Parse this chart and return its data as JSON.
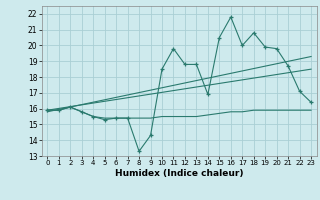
{
  "x": [
    0,
    1,
    2,
    3,
    4,
    5,
    6,
    7,
    8,
    9,
    10,
    11,
    12,
    13,
    14,
    15,
    16,
    17,
    18,
    19,
    20,
    21,
    22,
    23
  ],
  "line_main": [
    15.9,
    15.9,
    16.1,
    15.8,
    15.5,
    15.3,
    15.4,
    15.4,
    13.3,
    14.3,
    18.5,
    19.8,
    18.8,
    18.8,
    16.9,
    20.5,
    21.8,
    20.0,
    20.8,
    19.9,
    19.8,
    18.7,
    17.1,
    16.4
  ],
  "line_flat": [
    15.9,
    15.9,
    16.1,
    15.8,
    15.5,
    15.4,
    15.4,
    15.4,
    15.4,
    15.4,
    15.5,
    15.5,
    15.5,
    15.5,
    15.6,
    15.7,
    15.8,
    15.8,
    15.9,
    15.9,
    15.9,
    15.9,
    15.9,
    15.9
  ],
  "trend1_x": [
    0,
    23
  ],
  "trend1_y": [
    15.8,
    19.3
  ],
  "trend2_x": [
    0,
    23
  ],
  "trend2_y": [
    15.9,
    18.5
  ],
  "line_color": "#2a7a6e",
  "bg_color": "#ceeaed",
  "grid_color": "#aacfd4",
  "xlabel": "Humidex (Indice chaleur)",
  "ylim": [
    13,
    22.5
  ],
  "xlim": [
    -0.5,
    23.5
  ],
  "yticks": [
    13,
    14,
    15,
    16,
    17,
    18,
    19,
    20,
    21,
    22
  ],
  "xticks": [
    0,
    1,
    2,
    3,
    4,
    5,
    6,
    7,
    8,
    9,
    10,
    11,
    12,
    13,
    14,
    15,
    16,
    17,
    18,
    19,
    20,
    21,
    22,
    23
  ]
}
